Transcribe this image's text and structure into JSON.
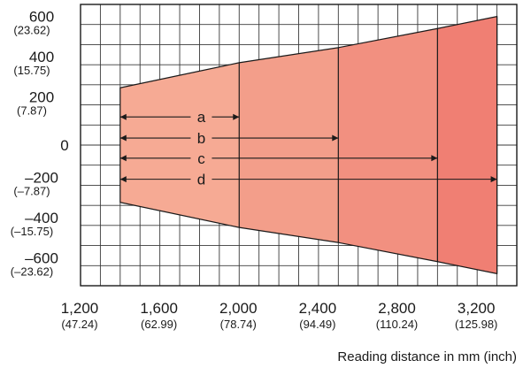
{
  "chart_data": {
    "type": "area",
    "title": "",
    "xlabel": "Reading distance in mm (inch)",
    "ylabel": "",
    "xlim": [
      1200,
      3400
    ],
    "ylim": [
      -700,
      700
    ],
    "grid": true,
    "x_ticks": [
      {
        "value": 1200,
        "label": "1,200",
        "sub": "(47.24)"
      },
      {
        "value": 1600,
        "label": "1,600",
        "sub": "(62.99)"
      },
      {
        "value": 2000,
        "label": "2,000",
        "sub": "(78.74)"
      },
      {
        "value": 2400,
        "label": "2,400",
        "sub": "(94.49)"
      },
      {
        "value": 2800,
        "label": "2,800",
        "sub": "(110.24)"
      },
      {
        "value": 3200,
        "label": "3,200",
        "sub": "(125.98)"
      }
    ],
    "y_ticks": [
      {
        "value": 600,
        "label": "600",
        "sub": "(23.62)"
      },
      {
        "value": 400,
        "label": "400",
        "sub": "(15.75)"
      },
      {
        "value": 200,
        "label": "200",
        "sub": "(7.87)"
      },
      {
        "value": 0,
        "label": "0",
        "sub": ""
      },
      {
        "value": -200,
        "label": "–200",
        "sub": "(–7.87)"
      },
      {
        "value": -400,
        "label": "–400",
        "sub": "(–15.75)"
      },
      {
        "value": -600,
        "label": "–600",
        "sub": "(–23.62)"
      }
    ],
    "field_of_view": {
      "x": [
        1400,
        2000,
        2500,
        3000,
        3300
      ],
      "upper": [
        285,
        410,
        485,
        580,
        640
      ],
      "lower": [
        -285,
        -410,
        -485,
        -580,
        -640
      ]
    },
    "ranges": [
      {
        "label": "a",
        "start": 1400,
        "end": 2000,
        "y": 140,
        "color": "#f6aa94"
      },
      {
        "label": "b",
        "start": 1400,
        "end": 2500,
        "y": 35,
        "color": "#f39e8a"
      },
      {
        "label": "c",
        "start": 1400,
        "end": 3000,
        "y": -65,
        "color": "#f29080"
      },
      {
        "label": "d",
        "start": 1400,
        "end": 3300,
        "y": -170,
        "color": "#f07f73"
      }
    ]
  }
}
